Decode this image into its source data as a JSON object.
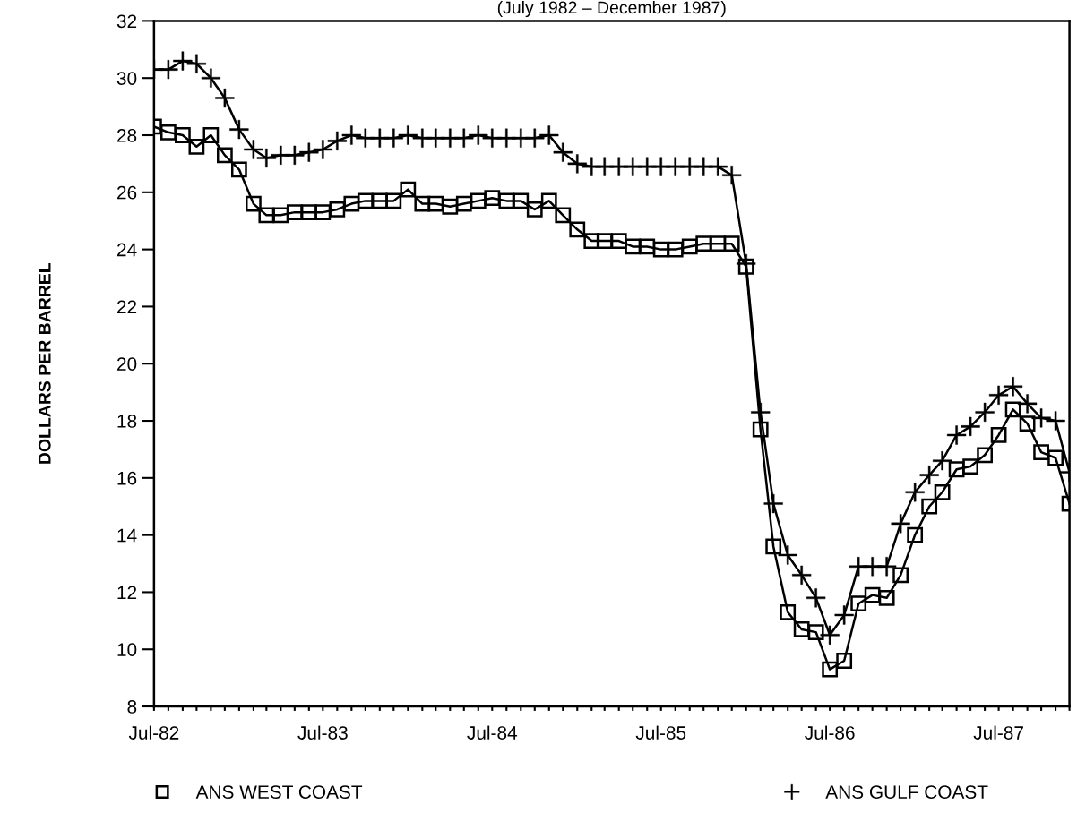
{
  "chart_data": {
    "type": "line",
    "subtitle": "(July 1982 – December 1987)",
    "ylabel": "DOLLARS PER BARREL",
    "x": [
      "1982-07",
      "1982-08",
      "1982-09",
      "1982-10",
      "1982-11",
      "1982-12",
      "1983-01",
      "1983-02",
      "1983-03",
      "1983-04",
      "1983-05",
      "1983-06",
      "1983-07",
      "1983-08",
      "1983-09",
      "1983-10",
      "1983-11",
      "1983-12",
      "1984-01",
      "1984-02",
      "1984-03",
      "1984-04",
      "1984-05",
      "1984-06",
      "1984-07",
      "1984-08",
      "1984-09",
      "1984-10",
      "1984-11",
      "1984-12",
      "1985-01",
      "1985-02",
      "1985-03",
      "1985-04",
      "1985-05",
      "1985-06",
      "1985-07",
      "1985-08",
      "1985-09",
      "1985-10",
      "1985-11",
      "1985-12",
      "1986-01",
      "1986-02",
      "1986-03",
      "1986-04",
      "1986-05",
      "1986-06",
      "1986-07",
      "1986-08",
      "1986-09",
      "1986-10",
      "1986-11",
      "1986-12",
      "1987-01",
      "1987-02",
      "1987-03",
      "1987-04",
      "1987-05",
      "1987-06",
      "1987-07",
      "1987-08",
      "1987-09",
      "1987-10",
      "1987-11",
      "1987-12"
    ],
    "series": [
      {
        "name": "ANS WEST COAST",
        "color": "#000000",
        "marker": "square",
        "values": [
          28.3,
          28.1,
          28.0,
          27.6,
          28.0,
          27.3,
          26.8,
          25.6,
          25.2,
          25.2,
          25.3,
          25.3,
          25.3,
          25.4,
          25.6,
          25.7,
          25.7,
          25.7,
          26.1,
          25.6,
          25.6,
          25.5,
          25.6,
          25.7,
          25.8,
          25.7,
          25.7,
          25.4,
          25.7,
          25.2,
          24.7,
          24.3,
          24.3,
          24.3,
          24.1,
          24.1,
          24.0,
          24.0,
          24.1,
          24.2,
          24.2,
          24.2,
          23.4,
          17.7,
          13.6,
          11.3,
          10.7,
          10.6,
          9.3,
          9.6,
          11.6,
          11.9,
          11.8,
          12.6,
          14.0,
          15.0,
          15.5,
          16.3,
          16.4,
          16.8,
          17.5,
          18.4,
          17.9,
          16.9,
          16.7,
          15.1
        ]
      },
      {
        "name": "ANS GULF COAST",
        "color": "#000000",
        "marker": "cross",
        "values": [
          30.3,
          30.3,
          30.6,
          30.5,
          30.0,
          29.3,
          28.2,
          27.5,
          27.2,
          27.3,
          27.3,
          27.4,
          27.5,
          27.8,
          28.0,
          27.9,
          27.9,
          27.9,
          28.0,
          27.9,
          27.9,
          27.9,
          27.9,
          28.0,
          27.9,
          27.9,
          27.9,
          27.9,
          28.0,
          27.4,
          27.0,
          26.9,
          26.9,
          26.9,
          26.9,
          26.9,
          26.9,
          26.9,
          26.9,
          26.9,
          26.9,
          26.6,
          23.5,
          18.3,
          15.1,
          13.3,
          12.6,
          11.8,
          10.5,
          11.2,
          12.9,
          12.9,
          12.9,
          14.4,
          15.5,
          16.1,
          16.6,
          17.5,
          17.8,
          18.3,
          18.9,
          19.2,
          18.6,
          18.1,
          18.0,
          16.2
        ]
      }
    ],
    "xlim": [
      "1982-07",
      "1987-12"
    ],
    "xticks": [
      {
        "value": "1982-07",
        "label": "Jul-82"
      },
      {
        "value": "1982-08",
        "label": null
      },
      {
        "value": "1982-09",
        "label": null
      },
      {
        "value": "1982-10",
        "label": null
      },
      {
        "value": "1982-11",
        "label": null
      },
      {
        "value": "1982-12",
        "label": null
      },
      {
        "value": "1983-01",
        "label": null
      },
      {
        "value": "1983-02",
        "label": null
      },
      {
        "value": "1983-03",
        "label": null
      },
      {
        "value": "1983-04",
        "label": null
      },
      {
        "value": "1983-05",
        "label": null
      },
      {
        "value": "1983-06",
        "label": null
      },
      {
        "value": "1983-07",
        "label": "Jul-83"
      },
      {
        "value": "1983-08",
        "label": null
      },
      {
        "value": "1983-09",
        "label": null
      },
      {
        "value": "1983-10",
        "label": null
      },
      {
        "value": "1983-11",
        "label": null
      },
      {
        "value": "1983-12",
        "label": null
      },
      {
        "value": "1984-01",
        "label": null
      },
      {
        "value": "1984-02",
        "label": null
      },
      {
        "value": "1984-03",
        "label": null
      },
      {
        "value": "1984-04",
        "label": null
      },
      {
        "value": "1984-05",
        "label": null
      },
      {
        "value": "1984-06",
        "label": null
      },
      {
        "value": "1984-07",
        "label": "Jul-84"
      },
      {
        "value": "1984-08",
        "label": null
      },
      {
        "value": "1984-09",
        "label": null
      },
      {
        "value": "1984-10",
        "label": null
      },
      {
        "value": "1984-11",
        "label": null
      },
      {
        "value": "1984-12",
        "label": null
      },
      {
        "value": "1985-01",
        "label": null
      },
      {
        "value": "1985-02",
        "label": null
      },
      {
        "value": "1985-03",
        "label": null
      },
      {
        "value": "1985-04",
        "label": null
      },
      {
        "value": "1985-05",
        "label": null
      },
      {
        "value": "1985-06",
        "label": null
      },
      {
        "value": "1985-07",
        "label": "Jul-85"
      },
      {
        "value": "1985-08",
        "label": null
      },
      {
        "value": "1985-09",
        "label": null
      },
      {
        "value": "1985-10",
        "label": null
      },
      {
        "value": "1985-11",
        "label": null
      },
      {
        "value": "1985-12",
        "label": null
      },
      {
        "value": "1986-01",
        "label": null
      },
      {
        "value": "1986-02",
        "label": null
      },
      {
        "value": "1986-03",
        "label": null
      },
      {
        "value": "1986-04",
        "label": null
      },
      {
        "value": "1986-05",
        "label": null
      },
      {
        "value": "1986-06",
        "label": null
      },
      {
        "value": "1986-07",
        "label": "Jul-86"
      },
      {
        "value": "1986-08",
        "label": null
      },
      {
        "value": "1986-09",
        "label": null
      },
      {
        "value": "1986-10",
        "label": null
      },
      {
        "value": "1986-11",
        "label": null
      },
      {
        "value": "1986-12",
        "label": null
      },
      {
        "value": "1987-01",
        "label": null
      },
      {
        "value": "1987-02",
        "label": null
      },
      {
        "value": "1987-03",
        "label": null
      },
      {
        "value": "1987-04",
        "label": null
      },
      {
        "value": "1987-05",
        "label": null
      },
      {
        "value": "1987-06",
        "label": null
      },
      {
        "value": "1987-07",
        "label": "Jul-87"
      },
      {
        "value": "1987-08",
        "label": null
      },
      {
        "value": "1987-09",
        "label": null
      },
      {
        "value": "1987-10",
        "label": null
      },
      {
        "value": "1987-11",
        "label": null
      },
      {
        "value": "1987-12",
        "label": null
      }
    ],
    "ylim": [
      8,
      32
    ],
    "yticks": [
      8,
      10,
      12,
      14,
      16,
      18,
      20,
      22,
      24,
      26,
      28,
      30,
      32
    ],
    "grid": false,
    "legend": "bottom",
    "line_style": "solid"
  }
}
